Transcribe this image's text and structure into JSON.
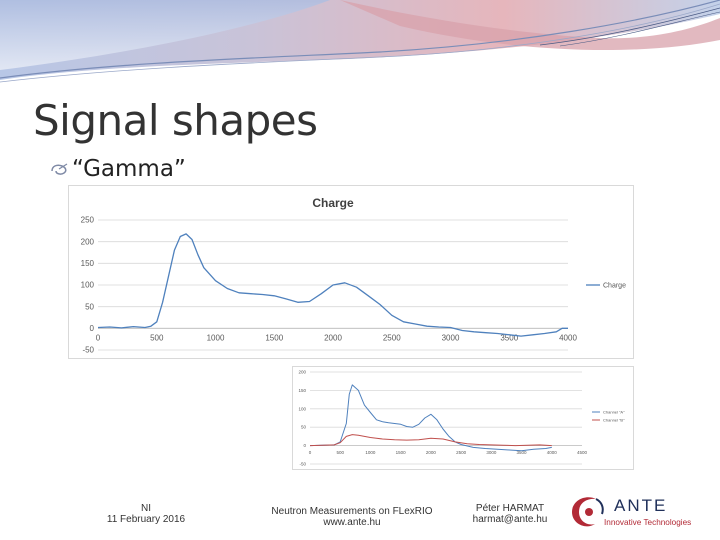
{
  "slide": {
    "title": "Signal shapes",
    "bullet": "“Gamma”"
  },
  "footer": {
    "left_line1": "NI",
    "left_line2": "11 February 2016",
    "center_line1": "Neutron Measurements on FLexRIO",
    "center_line2": "www.ante.hu",
    "right_line1": "Péter HARMAT",
    "right_line2": "harmat@ante.hu",
    "logo_main": "ANTE",
    "logo_sub": "Innovative Technologies"
  },
  "colors": {
    "series_blue": "#4f81bd",
    "series_red": "#c0504d",
    "logo_red": "#b22a36",
    "logo_navy": "#20305a"
  },
  "chart_data": [
    {
      "type": "line",
      "title": "Charge",
      "xlim": [
        0,
        4000
      ],
      "ylim": [
        -50,
        250
      ],
      "x_ticks": [
        0,
        500,
        1000,
        1500,
        2000,
        2500,
        3000,
        3500,
        4000
      ],
      "y_ticks": [
        -50,
        0,
        50,
        100,
        150,
        200,
        250
      ],
      "grid": true,
      "legend": "right",
      "series": [
        {
          "name": "Charge",
          "color": "#4f81bd",
          "x": [
            0,
            100,
            200,
            300,
            400,
            450,
            500,
            550,
            600,
            650,
            700,
            750,
            800,
            850,
            900,
            1000,
            1100,
            1200,
            1300,
            1400,
            1500,
            1600,
            1700,
            1800,
            1900,
            2000,
            2100,
            2200,
            2300,
            2400,
            2500,
            2600,
            2700,
            2800,
            2900,
            3000,
            3100,
            3200,
            3300,
            3400,
            3500,
            3600,
            3700,
            3800,
            3900,
            3950,
            4000
          ],
          "y": [
            2,
            3,
            1,
            4,
            2,
            5,
            15,
            60,
            120,
            180,
            212,
            218,
            205,
            170,
            140,
            110,
            92,
            82,
            80,
            78,
            75,
            68,
            60,
            62,
            80,
            100,
            105,
            95,
            75,
            55,
            30,
            15,
            10,
            5,
            3,
            2,
            -5,
            -8,
            -10,
            -12,
            -15,
            -18,
            -15,
            -12,
            -8,
            0,
            0
          ]
        }
      ]
    },
    {
      "type": "line",
      "xlim": [
        0,
        4500
      ],
      "ylim": [
        -50,
        200
      ],
      "x_ticks": [
        0,
        500,
        1000,
        1500,
        2000,
        2500,
        3000,
        3500,
        4000,
        4500
      ],
      "y_ticks": [
        -50,
        0,
        50,
        100,
        150,
        200
      ],
      "grid": true,
      "legend": "right",
      "series": [
        {
          "name": "Channel \"A\"",
          "color": "#4f81bd",
          "x": [
            0,
            200,
            400,
            500,
            600,
            650,
            700,
            800,
            900,
            1000,
            1100,
            1200,
            1300,
            1400,
            1500,
            1600,
            1700,
            1800,
            1900,
            2000,
            2100,
            2200,
            2300,
            2400,
            2500,
            2700,
            2900,
            3100,
            3300,
            3500,
            3700,
            3900,
            4000
          ],
          "y": [
            0,
            1,
            2,
            10,
            60,
            140,
            165,
            150,
            110,
            90,
            70,
            65,
            62,
            60,
            58,
            52,
            50,
            58,
            75,
            85,
            70,
            45,
            25,
            10,
            3,
            -5,
            -8,
            -10,
            -12,
            -14,
            -10,
            -8,
            -5
          ]
        },
        {
          "name": "Channel \"B\"",
          "color": "#c0504d",
          "x": [
            0,
            200,
            400,
            500,
            600,
            700,
            800,
            900,
            1000,
            1100,
            1200,
            1400,
            1600,
            1800,
            2000,
            2200,
            2400,
            2600,
            2800,
            3000,
            3200,
            3400,
            3600,
            3800,
            4000
          ],
          "y": [
            0,
            1,
            2,
            8,
            25,
            30,
            28,
            25,
            22,
            20,
            18,
            16,
            15,
            16,
            20,
            18,
            10,
            5,
            3,
            2,
            1,
            0,
            1,
            2,
            0
          ]
        }
      ]
    }
  ]
}
